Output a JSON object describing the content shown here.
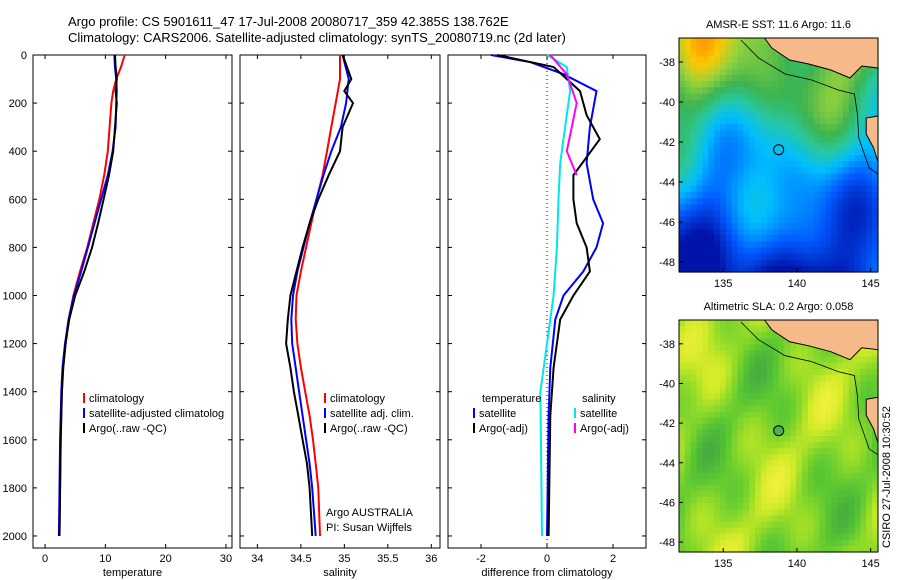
{
  "header": {
    "line1": "Argo profile: CS 5901611_47 17-Jul-2008 20080717_359 42.385S 138.762E",
    "line2": "Climatology: CARS2006. Satellite-adjusted climatology: synTS_20080719.nc (2d later)"
  },
  "credit": "CSIRO 27-Jul-2008 10:30:52",
  "colors": {
    "climatology": "#ff0000",
    "satellite": "#0000ff",
    "argo": "#000000",
    "salinity_satellite": "#00e5ee",
    "salinity_argo": "#ff00ff",
    "land": "#f5b98a"
  },
  "chart_data": [
    {
      "type": "line",
      "xlabel": "temperature",
      "ylabel": "",
      "xlim": [
        -2,
        31
      ],
      "ylim": [
        2050,
        0
      ],
      "xticks": [
        "0",
        "10",
        "20",
        "30"
      ],
      "yticks": [
        "0",
        "200",
        "400",
        "600",
        "800",
        "1000",
        "1200",
        "1400",
        "1600",
        "1800",
        "2000"
      ],
      "legend": [
        "climatology",
        "satellite-adjusted climatolog",
        "Argo(..raw -QC)"
      ],
      "legend_position": "lower-center",
      "series": [
        {
          "name": "climatology",
          "color": "#ff0000",
          "points": [
            [
              13.2,
              0
            ],
            [
              12.6,
              50
            ],
            [
              11.8,
              100
            ],
            [
              11.3,
              150
            ],
            [
              11.0,
              200
            ],
            [
              10.7,
              300
            ],
            [
              10.4,
              400
            ],
            [
              9.8,
              500
            ],
            [
              9.0,
              600
            ],
            [
              8.0,
              700
            ],
            [
              7.0,
              800
            ],
            [
              5.8,
              900
            ],
            [
              4.7,
              1000
            ],
            [
              3.9,
              1100
            ],
            [
              3.4,
              1200
            ],
            [
              3.0,
              1300
            ],
            [
              2.8,
              1400
            ],
            [
              2.6,
              1600
            ],
            [
              2.5,
              1800
            ],
            [
              2.4,
              2000
            ]
          ]
        },
        {
          "name": "satellite-adjusted climatolog",
          "color": "#0000ff",
          "points": [
            [
              11.5,
              0
            ],
            [
              11.6,
              50
            ],
            [
              11.8,
              100
            ],
            [
              11.9,
              150
            ],
            [
              11.8,
              200
            ],
            [
              11.7,
              300
            ],
            [
              11.2,
              400
            ],
            [
              10.4,
              500
            ],
            [
              9.3,
              600
            ],
            [
              8.2,
              700
            ],
            [
              7.1,
              800
            ],
            [
              6.0,
              900
            ],
            [
              4.8,
              1000
            ],
            [
              3.9,
              1100
            ],
            [
              3.3,
              1200
            ],
            [
              2.9,
              1300
            ],
            [
              2.7,
              1400
            ],
            [
              2.5,
              1600
            ],
            [
              2.4,
              1800
            ],
            [
              2.3,
              2000
            ]
          ]
        },
        {
          "name": "Argo(..raw -QC)",
          "color": "#000000",
          "points": [
            [
              11.6,
              0
            ],
            [
              11.7,
              50
            ],
            [
              11.9,
              100
            ],
            [
              11.7,
              150
            ],
            [
              11.9,
              200
            ],
            [
              11.6,
              300
            ],
            [
              11.3,
              400
            ],
            [
              10.6,
              500
            ],
            [
              9.7,
              600
            ],
            [
              8.8,
              700
            ],
            [
              7.8,
              800
            ],
            [
              6.5,
              900
            ],
            [
              5.0,
              1000
            ],
            [
              4.0,
              1100
            ],
            [
              3.4,
              1200
            ],
            [
              3.0,
              1300
            ],
            [
              2.8,
              1400
            ],
            [
              2.6,
              1600
            ],
            [
              2.5,
              1800
            ],
            [
              2.4,
              2000
            ]
          ]
        }
      ]
    },
    {
      "type": "line",
      "xlabel": "salinity",
      "ylabel": "",
      "xlim": [
        33.8,
        36.1
      ],
      "ylim": [
        2050,
        0
      ],
      "xticks": [
        "34",
        "34.5",
        "35",
        "35.5",
        "36"
      ],
      "legend": [
        "climatology",
        "satellite adj. clim.",
        "Argo(..raw -QC)"
      ],
      "legend_position": "lower-right",
      "annotations": [
        "Argo AUSTRALIA",
        "PI: Susan Wijffels"
      ],
      "series": [
        {
          "name": "climatology",
          "color": "#ff0000",
          "points": [
            [
              34.95,
              0
            ],
            [
              34.95,
              100
            ],
            [
              34.9,
              200
            ],
            [
              34.85,
              300
            ],
            [
              34.8,
              400
            ],
            [
              34.75,
              500
            ],
            [
              34.68,
              600
            ],
            [
              34.62,
              700
            ],
            [
              34.56,
              800
            ],
            [
              34.5,
              900
            ],
            [
              34.45,
              1000
            ],
            [
              34.44,
              1100
            ],
            [
              34.46,
              1200
            ],
            [
              34.5,
              1300
            ],
            [
              34.55,
              1400
            ],
            [
              34.6,
              1500
            ],
            [
              34.64,
              1600
            ],
            [
              34.67,
              1700
            ],
            [
              34.7,
              1800
            ],
            [
              34.72,
              2000
            ]
          ]
        },
        {
          "name": "satellite adj. clim.",
          "color": "#0000ff",
          "points": [
            [
              34.98,
              0
            ],
            [
              35.05,
              100
            ],
            [
              35.02,
              200
            ],
            [
              34.96,
              300
            ],
            [
              34.85,
              400
            ],
            [
              34.76,
              500
            ],
            [
              34.68,
              600
            ],
            [
              34.6,
              700
            ],
            [
              34.53,
              800
            ],
            [
              34.46,
              900
            ],
            [
              34.41,
              1000
            ],
            [
              34.39,
              1100
            ],
            [
              34.4,
              1200
            ],
            [
              34.44,
              1300
            ],
            [
              34.48,
              1400
            ],
            [
              34.52,
              1500
            ],
            [
              34.56,
              1600
            ],
            [
              34.6,
              1700
            ],
            [
              34.63,
              1800
            ],
            [
              34.67,
              2000
            ]
          ]
        },
        {
          "name": "Argo(..raw -QC)",
          "color": "#000000",
          "points": [
            [
              34.98,
              0
            ],
            [
              35.08,
              100
            ],
            [
              35.0,
              150
            ],
            [
              35.1,
              200
            ],
            [
              34.98,
              300
            ],
            [
              34.95,
              400
            ],
            [
              34.82,
              500
            ],
            [
              34.7,
              600
            ],
            [
              34.6,
              700
            ],
            [
              34.52,
              800
            ],
            [
              34.45,
              900
            ],
            [
              34.38,
              1000
            ],
            [
              34.35,
              1100
            ],
            [
              34.33,
              1200
            ],
            [
              34.38,
              1300
            ],
            [
              34.42,
              1400
            ],
            [
              34.47,
              1500
            ],
            [
              34.52,
              1600
            ],
            [
              34.57,
              1700
            ],
            [
              34.6,
              1800
            ],
            [
              34.63,
              2000
            ]
          ]
        }
      ]
    },
    {
      "type": "line",
      "xlabel": "difference from climatology",
      "ylabel": "",
      "xlim": [
        -3,
        3
      ],
      "ylim": [
        2050,
        0
      ],
      "xticks": [
        "-2",
        "0",
        "2"
      ],
      "zero_line": true,
      "legend_groups": [
        {
          "title": "temperature",
          "items": [
            "satellite",
            "Argo(-adj)"
          ]
        },
        {
          "title": "salinity",
          "items": [
            "satellite",
            "Argo(-adj)"
          ]
        }
      ],
      "legend_position": "lower-center",
      "series": [
        {
          "name": "temperature satellite",
          "color": "#0000ff",
          "points": [
            [
              -1.7,
              0
            ],
            [
              -0.5,
              30
            ],
            [
              0.5,
              80
            ],
            [
              1.5,
              150
            ],
            [
              1.3,
              300
            ],
            [
              1.2,
              450
            ],
            [
              1.4,
              600
            ],
            [
              1.7,
              700
            ],
            [
              1.5,
              800
            ],
            [
              1.1,
              900
            ],
            [
              0.5,
              1000
            ],
            [
              0.25,
              1100
            ],
            [
              0.1,
              1300
            ],
            [
              0.05,
              1500
            ],
            [
              0.0,
              2000
            ]
          ]
        },
        {
          "name": "temperature Argo(-adj)",
          "color": "#000000",
          "points": [
            [
              -1.5,
              0
            ],
            [
              0.2,
              50
            ],
            [
              1.0,
              150
            ],
            [
              1.2,
              250
            ],
            [
              1.6,
              350
            ],
            [
              0.8,
              500
            ],
            [
              0.8,
              600
            ],
            [
              0.9,
              700
            ],
            [
              1.2,
              800
            ],
            [
              1.3,
              900
            ],
            [
              0.8,
              1000
            ],
            [
              0.4,
              1100
            ],
            [
              0.2,
              1300
            ],
            [
              0.1,
              1500
            ],
            [
              0.05,
              2000
            ]
          ]
        },
        {
          "name": "salinity satellite",
          "color": "#00e5ee",
          "points": [
            [
              0.0,
              0
            ],
            [
              0.6,
              50
            ],
            [
              0.7,
              150
            ],
            [
              0.55,
              300
            ],
            [
              0.4,
              450
            ],
            [
              0.35,
              600
            ],
            [
              0.3,
              800
            ],
            [
              0.2,
              1000
            ],
            [
              0.0,
              1200
            ],
            [
              -0.2,
              1400
            ],
            [
              -0.15,
              2000
            ]
          ]
        },
        {
          "name": "salinity Argo(-adj)",
          "color": "#ff00ff",
          "points": [
            [
              0.1,
              0
            ],
            [
              0.6,
              80
            ],
            [
              0.9,
              200
            ],
            [
              0.6,
              400
            ],
            [
              0.9,
              500
            ]
          ]
        }
      ]
    },
    {
      "type": "heatmap",
      "title": "AMSR-E SST: 11.6 Argo: 11.6",
      "xlim": [
        132,
        145.5
      ],
      "ylim": [
        -48.5,
        -36.8
      ],
      "xticks": [
        "135",
        "140",
        "145"
      ],
      "yticks": [
        "-38",
        "-40",
        "-42",
        "-44",
        "-46",
        "-48"
      ],
      "marker": {
        "lon": 138.762,
        "lat": -42.385
      }
    },
    {
      "type": "heatmap",
      "title": "Altimetric SLA: 0.2 Argo: 0.058",
      "xlim": [
        132,
        145.5
      ],
      "ylim": [
        -48.5,
        -36.8
      ],
      "xticks": [
        "135",
        "140",
        "145"
      ],
      "yticks": [
        "-38",
        "-40",
        "-42",
        "-44",
        "-46",
        "-48"
      ],
      "marker": {
        "lon": 138.762,
        "lat": -42.385
      }
    }
  ]
}
